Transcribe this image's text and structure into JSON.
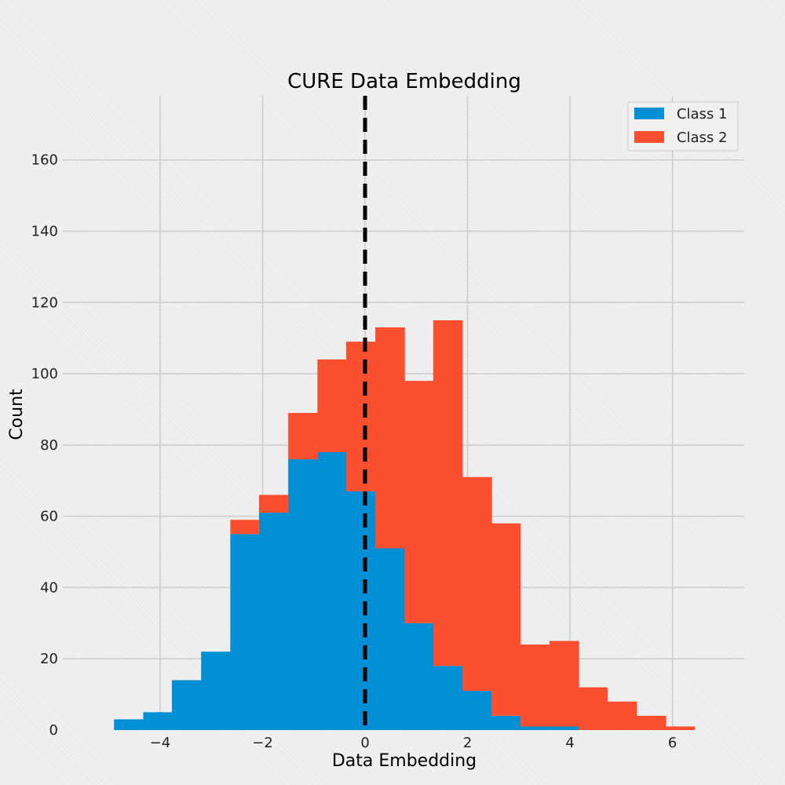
{
  "chart_data": {
    "type": "bar",
    "subtype": "stacked-histogram",
    "title": "CURE Data Embedding",
    "xlabel": "Data Embedding",
    "ylabel": "Count",
    "xlim": [
      -5.9,
      7.4
    ],
    "ylim": [
      0,
      178
    ],
    "xticks": [
      -4,
      -2,
      0,
      2,
      4,
      6
    ],
    "xtick_labels": [
      "−4",
      "−2",
      "0",
      "2",
      "4",
      "6"
    ],
    "yticks": [
      0,
      20,
      40,
      60,
      80,
      100,
      120,
      140,
      160
    ],
    "ytick_labels": [
      "0",
      "20",
      "40",
      "60",
      "80",
      "100",
      "120",
      "140",
      "160"
    ],
    "grid": true,
    "legend_position": "top-right",
    "bin_edges": [
      -4.9,
      -4.33,
      -3.77,
      -3.2,
      -2.63,
      -2.07,
      -1.5,
      -0.93,
      -0.37,
      0.2,
      0.77,
      1.33,
      1.9,
      2.47,
      3.03,
      3.6,
      4.17,
      4.73,
      5.3,
      5.87,
      6.43
    ],
    "series": [
      {
        "name": "Class 1",
        "color": "#008fd5",
        "values": [
          3,
          5,
          14,
          22,
          55,
          61,
          76,
          78,
          67,
          51,
          30,
          18,
          11,
          4,
          1,
          1,
          0,
          0,
          0,
          0
        ]
      },
      {
        "name": "Class 2",
        "color": "#fc4f30",
        "cumulative_totals": [
          3,
          5,
          14,
          22,
          59,
          66,
          89,
          104,
          109,
          113,
          98,
          115,
          71,
          58,
          24,
          25,
          12,
          8,
          4,
          1
        ]
      }
    ],
    "annotations": [
      {
        "type": "vertical-dashed-line",
        "x": 0,
        "color": "#000000"
      }
    ]
  }
}
